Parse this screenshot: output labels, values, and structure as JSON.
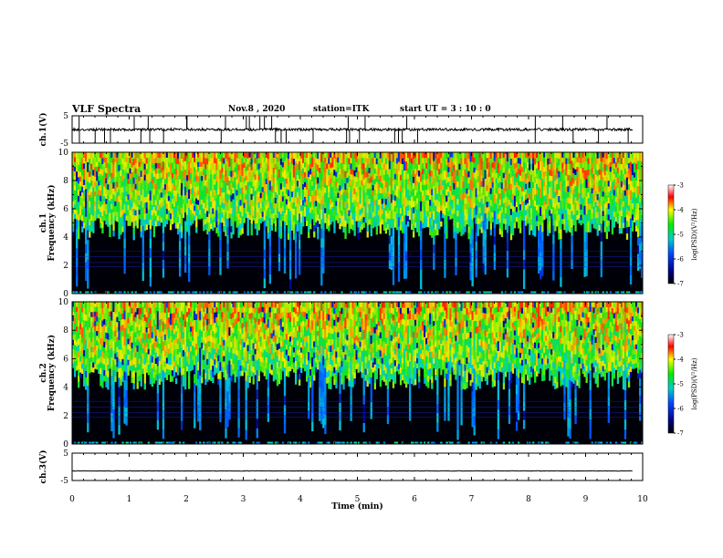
{
  "header": {
    "title": "VLF Spectra",
    "date": "Nov.8  , 2020",
    "station": "station=ITK",
    "start": "start  UT  =  3  : 10 : 0"
  },
  "chart_data": [
    {
      "type": "line",
      "panel": "ch1-waveform",
      "ylabel": "ch.1(V)",
      "ylim": [
        -5,
        5
      ],
      "yticks": [
        "5",
        "-5"
      ],
      "xlim": [
        0,
        10
      ],
      "trace_level": 0
    },
    {
      "type": "heatmap",
      "panel": "ch1-spectrogram",
      "ylabel": "ch.1\nFrequency (kHz)",
      "ylim": [
        0,
        10
      ],
      "yticks": [
        "0",
        "2",
        "4",
        "6",
        "8",
        "10"
      ],
      "xlim": [
        0,
        10
      ],
      "colorbar": {
        "label": "log(PSD)(V²/Hz)",
        "range": [
          -7,
          -3
        ],
        "ticks": [
          "-3",
          "-4",
          "-5",
          "-6",
          "-7"
        ]
      }
    },
    {
      "type": "heatmap",
      "panel": "ch2-spectrogram",
      "ylabel": "ch.2\nFrequency (kHz)",
      "ylim": [
        0,
        10
      ],
      "yticks": [
        "0",
        "2",
        "4",
        "6",
        "8",
        "10"
      ],
      "xlim": [
        0,
        10
      ],
      "colorbar": {
        "label": "log(PSD)(V²/Hz)",
        "range": [
          -7,
          -3
        ],
        "ticks": [
          "-3",
          "-4",
          "-5",
          "-6",
          "-7"
        ]
      }
    },
    {
      "type": "line",
      "panel": "ch3-waveform",
      "ylabel": "ch.3(V)",
      "ylim": [
        -5,
        5
      ],
      "yticks": [
        "5",
        "-5"
      ],
      "xlim": [
        0,
        10
      ],
      "trace_level": -1.5
    }
  ],
  "xaxis": {
    "label": "Time  (min)",
    "ticks": [
      "0",
      "1",
      "2",
      "3",
      "4",
      "5",
      "6",
      "7",
      "8",
      "9",
      "10"
    ]
  },
  "colors": {
    "background": "#000000",
    "axis": "#000000"
  }
}
